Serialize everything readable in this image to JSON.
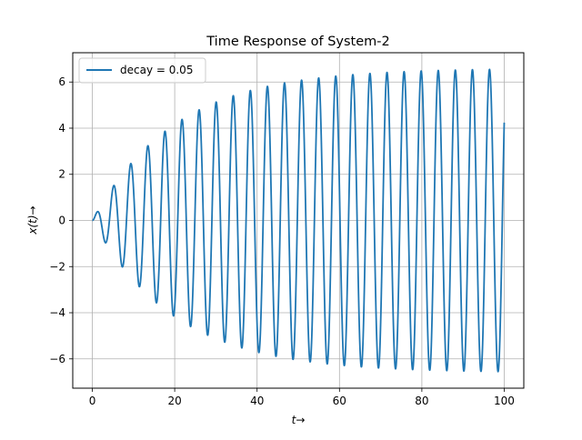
{
  "chart_data": {
    "type": "line",
    "title": "Time Response of System-2",
    "xlabel": "t→",
    "ylabel": "x(t)→",
    "xlim": [
      -4.75,
      104.75
    ],
    "ylim": [
      -7.27,
      7.27
    ],
    "xticks": [
      0,
      20,
      40,
      60,
      80,
      100
    ],
    "yticks": [
      -6,
      -4,
      -2,
      0,
      2,
      4,
      6
    ],
    "grid": true,
    "legend_position": "top-left",
    "series": [
      {
        "name": "decay = 0.05",
        "color": "#1f77b4",
        "model": {
          "t_start": 0,
          "t_end": 100,
          "decay": 0.05,
          "amplitude": 6.6,
          "omega": 1.515
        }
      }
    ]
  }
}
